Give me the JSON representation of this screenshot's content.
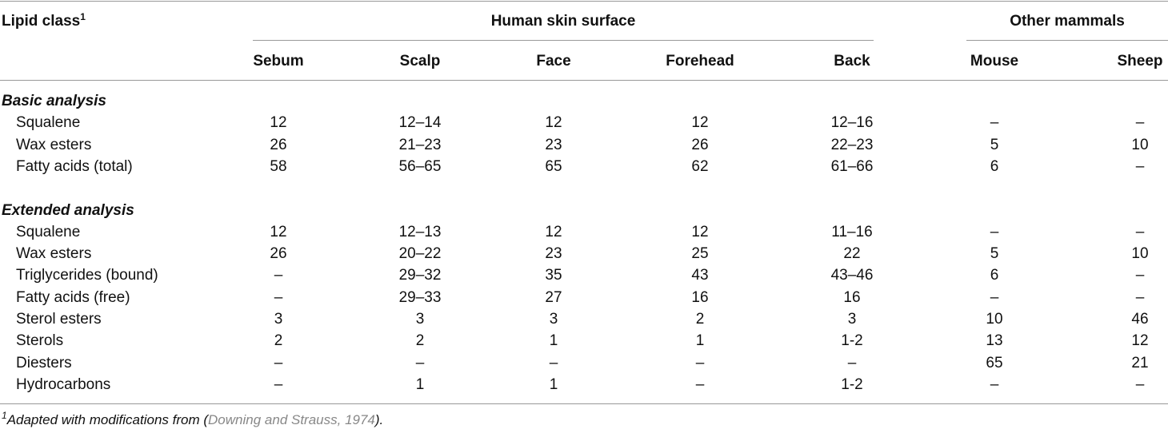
{
  "header": {
    "label": "Lipid class",
    "marker": "1",
    "groups": [
      "Human skin surface",
      "Other mammals"
    ],
    "columns": [
      "Sebum",
      "Scalp",
      "Face",
      "Forehead",
      "Back",
      "Mouse",
      "Sheep"
    ]
  },
  "sections": [
    {
      "title": "Basic analysis",
      "rows": [
        [
          "Squalene",
          "12",
          "12–14",
          "12",
          "12",
          "12–16",
          "–",
          "–"
        ],
        [
          "Wax esters",
          "26",
          "21–23",
          "23",
          "26",
          "22–23",
          "5",
          "10"
        ],
        [
          "Fatty acids (total)",
          "58",
          "56–65",
          "65",
          "62",
          "61–66",
          "6",
          "–"
        ]
      ]
    },
    {
      "title": "Extended analysis",
      "rows": [
        [
          "Squalene",
          "12",
          "12–13",
          "12",
          "12",
          "11–16",
          "–",
          "–"
        ],
        [
          "Wax esters",
          "26",
          "20–22",
          "23",
          "25",
          "22",
          "5",
          "10"
        ],
        [
          "Triglycerides (bound)",
          "–",
          "29–32",
          "35",
          "43",
          "43–46",
          "6",
          "–"
        ],
        [
          "Fatty acids (free)",
          "–",
          "29–33",
          "27",
          "16",
          "16",
          "–",
          "–"
        ],
        [
          "Sterol esters",
          "3",
          "3",
          "3",
          "2",
          "3",
          "10",
          "46"
        ],
        [
          "Sterols",
          "2",
          "2",
          "1",
          "1",
          "1-2",
          "13",
          "12"
        ],
        [
          "Diesters",
          "–",
          "–",
          "–",
          "–",
          "–",
          "65",
          "21"
        ],
        [
          "Hydrocarbons",
          "–",
          "1",
          "1",
          "–",
          "1-2",
          "–",
          "–"
        ]
      ]
    }
  ],
  "footnote": {
    "marker": "1",
    "text": "Adapted with modifications from (",
    "link": "Downing and Strauss, 1974",
    "tail": ")."
  }
}
